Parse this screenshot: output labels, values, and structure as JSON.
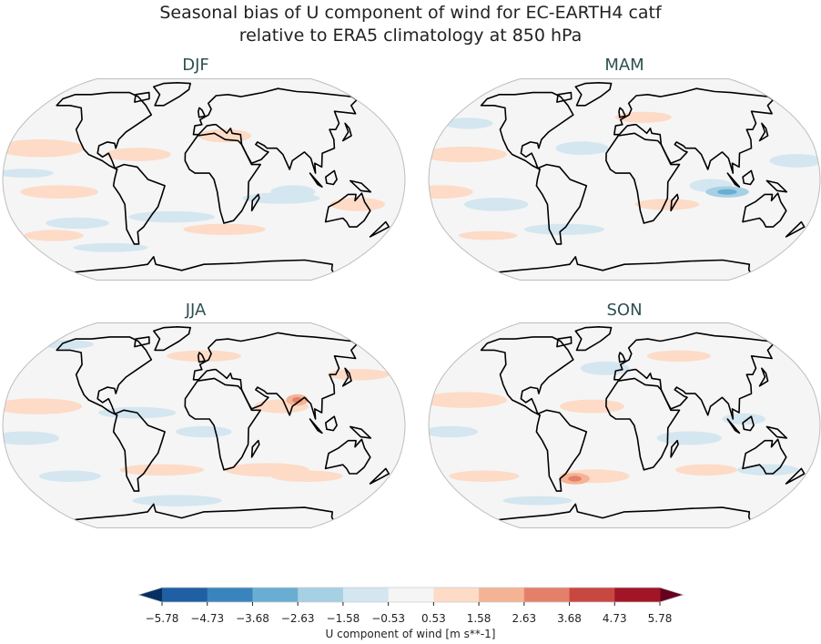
{
  "title_line1": "Seasonal bias of U component of wind for EC-EARTH4 catf",
  "title_line2": "relative to ERA5 climatology at 850 hPa",
  "chart_data": {
    "type": "map",
    "projection": "Robinson",
    "panels": [
      {
        "title": "DJF",
        "patches": [
          [
            -150,
            25,
            40,
            8,
            1
          ],
          [
            -60,
            20,
            30,
            6,
            1
          ],
          [
            20,
            35,
            25,
            6,
            1
          ],
          [
            -130,
            -10,
            35,
            6,
            1
          ],
          [
            80,
            -10,
            20,
            6,
            -1
          ],
          [
            70,
            -15,
            35,
            5,
            -1
          ],
          [
            -30,
            -30,
            40,
            5,
            -1
          ],
          [
            -120,
            -35,
            30,
            5,
            -1
          ],
          [
            20,
            -40,
            40,
            5,
            1
          ],
          [
            -150,
            -45,
            30,
            5,
            1
          ],
          [
            140,
            -20,
            25,
            6,
            1
          ],
          [
            -100,
            -55,
            40,
            4,
            -1
          ],
          [
            -160,
            5,
            25,
            4,
            -1
          ]
        ]
      },
      {
        "title": "MAM",
        "patches": [
          [
            -150,
            20,
            40,
            7,
            1
          ],
          [
            -40,
            25,
            25,
            6,
            -1
          ],
          [
            -170,
            -10,
            30,
            6,
            1
          ],
          [
            80,
            -5,
            20,
            6,
            -1
          ],
          [
            95,
            -10,
            20,
            5,
            -2
          ],
          [
            40,
            -20,
            30,
            5,
            1
          ],
          [
            -120,
            -20,
            30,
            6,
            -1
          ],
          [
            -60,
            -40,
            40,
            5,
            -1
          ],
          [
            -140,
            -45,
            30,
            4,
            1
          ],
          [
            160,
            15,
            25,
            6,
            -1
          ],
          [
            20,
            50,
            30,
            5,
            1
          ],
          [
            -160,
            45,
            25,
            5,
            -1
          ]
        ]
      },
      {
        "title": "JJA",
        "patches": [
          [
            -150,
            15,
            40,
            7,
            1
          ],
          [
            -60,
            10,
            35,
            5,
            -1
          ],
          [
            70,
            15,
            25,
            6,
            1
          ],
          [
            85,
            20,
            10,
            5,
            2
          ],
          [
            -160,
            -10,
            30,
            6,
            -1
          ],
          [
            0,
            -5,
            25,
            5,
            -1
          ],
          [
            -40,
            -35,
            40,
            5,
            1
          ],
          [
            60,
            -35,
            40,
            6,
            1
          ],
          [
            100,
            -40,
            35,
            5,
            1
          ],
          [
            -130,
            -40,
            30,
            5,
            -1
          ],
          [
            150,
            40,
            30,
            5,
            1
          ],
          [
            0,
            55,
            40,
            5,
            1
          ],
          [
            -160,
            65,
            30,
            4,
            -1
          ],
          [
            -30,
            -60,
            50,
            5,
            -1
          ]
        ]
      },
      {
        "title": "SON",
        "patches": [
          [
            -150,
            20,
            40,
            7,
            1
          ],
          [
            -20,
            45,
            25,
            6,
            -1
          ],
          [
            -30,
            15,
            30,
            6,
            1
          ],
          [
            -160,
            -5,
            25,
            5,
            -1
          ],
          [
            60,
            -10,
            30,
            6,
            -1
          ],
          [
            110,
            5,
            20,
            5,
            -1
          ],
          [
            -30,
            -40,
            35,
            6,
            1
          ],
          [
            -50,
            -42,
            15,
            5,
            2
          ],
          [
            -140,
            -40,
            35,
            5,
            1
          ],
          [
            80,
            -35,
            30,
            5,
            1
          ],
          [
            140,
            -35,
            30,
            5,
            -1
          ],
          [
            60,
            55,
            35,
            5,
            1
          ],
          [
            -100,
            -60,
            40,
            4,
            -1
          ]
        ]
      }
    ],
    "colorbar": {
      "label": "U component of wind [m s**-1]",
      "ticks": [
        "−5.78",
        "−4.73",
        "−3.68",
        "−2.63",
        "−1.58",
        "−0.53",
        "0.53",
        "1.58",
        "2.63",
        "3.68",
        "4.73",
        "5.78"
      ],
      "colors": [
        "#1f5fa3",
        "#3a84bd",
        "#6aadd2",
        "#a6d0e4",
        "#d4e6f0",
        "#f5f5f5",
        "#fddbc7",
        "#f4b394",
        "#e4806a",
        "#c94741",
        "#a11527"
      ],
      "extend_low": "#053061",
      "extend_high": "#67001f"
    }
  }
}
